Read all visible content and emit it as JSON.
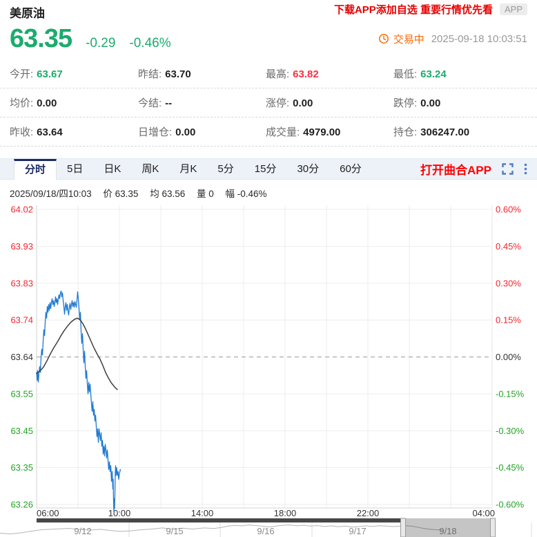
{
  "colors": {
    "up_red": "#fb2f44",
    "down_green": "#1cab6d",
    "axis_red": "#f5232e",
    "axis_green": "#23a325",
    "banner_red": "#e60000",
    "accent_orange": "#ff6600",
    "tab_active": "#1b2a63",
    "icon_blue": "#4e7fc1",
    "price_line": "#1e79d2",
    "avg_line": "#3d3d3d"
  },
  "header": {
    "title": "美原油",
    "promo": "下载APP添加自选 重要行情优先看",
    "app_badge": "APP",
    "price": "63.35",
    "change": "-0.29",
    "change_pct": "-0.46%",
    "status": "交易中",
    "timestamp": "2025-09-18 10:03:51"
  },
  "stats": {
    "rows": [
      [
        {
          "label": "今开:",
          "value": "63.67",
          "color": "green"
        },
        {
          "label": "昨结:",
          "value": "63.70",
          "color": "black"
        },
        {
          "label": "最高:",
          "value": "63.82",
          "color": "red"
        },
        {
          "label": "最低:",
          "value": "63.24",
          "color": "green"
        }
      ],
      [
        {
          "label": "均价:",
          "value": "0.00",
          "color": "black"
        },
        {
          "label": "今结:",
          "value": "--",
          "color": "black"
        },
        {
          "label": "涨停:",
          "value": "0.00",
          "color": "black"
        },
        {
          "label": "跌停:",
          "value": "0.00",
          "color": "black"
        }
      ],
      [
        {
          "label": "昨收:",
          "value": "63.64",
          "color": "black"
        },
        {
          "label": "日增仓:",
          "value": "0.00",
          "color": "black"
        },
        {
          "label": "成交量:",
          "value": "4979.00",
          "color": "black"
        },
        {
          "label": "持仓:",
          "value": "306247.00",
          "color": "black"
        }
      ]
    ]
  },
  "tabs": {
    "items": [
      "分时",
      "5日",
      "日K",
      "周K",
      "月K",
      "5分",
      "15分",
      "30分",
      "60分"
    ],
    "active": 0,
    "app_link": "打开曲合APP"
  },
  "chart_info": [
    "2025/09/18/四10:03",
    "价 63.35",
    "均 63.56",
    "量 0",
    "幅 -0.46%"
  ],
  "chart_data": {
    "type": "line",
    "title": "美原油 分时走势",
    "baseline_price": 63.64,
    "ylim": [
      63.26,
      64.02
    ],
    "y_axis_left": [
      "64.02",
      "63.93",
      "63.83",
      "63.74",
      "63.64",
      "63.55",
      "63.45",
      "63.35",
      "63.26"
    ],
    "y_axis_right": [
      "0.60%",
      "0.45%",
      "0.30%",
      "0.15%",
      "0.00%",
      "-0.15%",
      "-0.30%",
      "-0.45%",
      "-0.60%"
    ],
    "x_total_minutes": 1320,
    "x_ticks": [
      {
        "label": "06:00",
        "t": 0
      },
      {
        "label": "10:00",
        "t": 240
      },
      {
        "label": "14:00",
        "t": 480
      },
      {
        "label": "18:00",
        "t": 720
      },
      {
        "label": "22:00",
        "t": 960
      },
      {
        "label": "04:00",
        "t": 1320
      }
    ],
    "grid_minutes_step": 120,
    "series": [
      {
        "name": "price",
        "color": "#1e79d2",
        "points": [
          [
            0,
            63.6
          ],
          [
            2,
            63.58
          ],
          [
            3,
            63.605
          ],
          [
            5,
            63.575
          ],
          [
            7,
            63.6
          ],
          [
            9,
            63.615
          ],
          [
            11,
            63.6
          ],
          [
            13,
            63.64
          ],
          [
            15,
            63.66
          ],
          [
            17,
            63.645
          ],
          [
            19,
            63.68
          ],
          [
            21,
            63.71
          ],
          [
            23,
            63.695
          ],
          [
            25,
            63.73
          ],
          [
            27,
            63.755
          ],
          [
            29,
            63.74
          ],
          [
            31,
            63.77
          ],
          [
            33,
            63.755
          ],
          [
            35,
            63.775
          ],
          [
            37,
            63.76
          ],
          [
            39,
            63.78
          ],
          [
            41,
            63.765
          ],
          [
            43,
            63.78
          ],
          [
            45,
            63.79
          ],
          [
            47,
            63.775
          ],
          [
            49,
            63.785
          ],
          [
            51,
            63.77
          ],
          [
            53,
            63.78
          ],
          [
            55,
            63.795
          ],
          [
            57,
            63.78
          ],
          [
            59,
            63.79
          ],
          [
            61,
            63.775
          ],
          [
            63,
            63.79
          ],
          [
            65,
            63.8
          ],
          [
            67,
            63.79
          ],
          [
            69,
            63.805
          ],
          [
            71,
            63.81
          ],
          [
            73,
            63.795
          ],
          [
            75,
            63.805
          ],
          [
            77,
            63.785
          ],
          [
            79,
            63.77
          ],
          [
            81,
            63.75
          ],
          [
            83,
            63.77
          ],
          [
            85,
            63.78
          ],
          [
            87,
            63.76
          ],
          [
            89,
            63.775
          ],
          [
            91,
            63.758
          ],
          [
            93,
            63.748
          ],
          [
            95,
            63.768
          ],
          [
            97,
            63.778
          ],
          [
            99,
            63.762
          ],
          [
            101,
            63.775
          ],
          [
            103,
            63.785
          ],
          [
            105,
            63.77
          ],
          [
            107,
            63.78
          ],
          [
            109,
            63.768
          ],
          [
            111,
            63.783
          ],
          [
            113,
            63.775
          ],
          [
            115,
            63.768
          ],
          [
            117,
            63.785
          ],
          [
            119,
            63.808
          ],
          [
            121,
            63.79
          ],
          [
            123,
            63.765
          ],
          [
            125,
            63.735
          ],
          [
            127,
            63.755
          ],
          [
            129,
            63.705
          ],
          [
            131,
            63.675
          ],
          [
            133,
            63.7
          ],
          [
            135,
            63.66
          ],
          [
            137,
            63.625
          ],
          [
            139,
            63.655
          ],
          [
            141,
            63.615
          ],
          [
            143,
            63.585
          ],
          [
            145,
            63.605
          ],
          [
            147,
            63.57
          ],
          [
            149,
            63.545
          ],
          [
            151,
            63.575
          ],
          [
            153,
            63.55
          ],
          [
            155,
            63.57
          ],
          [
            157,
            63.545
          ],
          [
            159,
            63.52
          ],
          [
            161,
            63.5
          ],
          [
            163,
            63.525
          ],
          [
            165,
            63.49
          ],
          [
            167,
            63.505
          ],
          [
            169,
            63.475
          ],
          [
            171,
            63.49
          ],
          [
            173,
            63.46
          ],
          [
            175,
            63.435
          ],
          [
            177,
            63.455
          ],
          [
            179,
            63.42
          ],
          [
            181,
            63.455
          ],
          [
            183,
            63.44
          ],
          [
            185,
            63.425
          ],
          [
            187,
            63.445
          ],
          [
            189,
            63.41
          ],
          [
            191,
            63.425
          ],
          [
            193,
            63.39
          ],
          [
            195,
            63.41
          ],
          [
            197,
            63.385
          ],
          [
            199,
            63.415
          ],
          [
            201,
            63.4
          ],
          [
            203,
            63.38
          ],
          [
            205,
            63.4
          ],
          [
            207,
            63.375
          ],
          [
            209,
            63.35
          ],
          [
            211,
            63.37
          ],
          [
            213,
            63.345
          ],
          [
            215,
            63.36
          ],
          [
            217,
            63.32
          ],
          [
            219,
            63.345
          ],
          [
            221,
            63.3
          ],
          [
            222,
            63.325
          ],
          [
            223,
            63.27
          ],
          [
            224,
            63.24
          ],
          [
            225,
            63.275
          ],
          [
            226,
            63.25
          ],
          [
            227,
            63.29
          ],
          [
            228,
            63.34
          ],
          [
            229,
            63.36
          ],
          [
            230,
            63.335
          ],
          [
            232,
            63.355
          ],
          [
            234,
            63.335
          ],
          [
            236,
            63.345
          ],
          [
            238,
            63.325
          ],
          [
            240,
            63.34
          ],
          [
            243,
            63.35
          ]
        ]
      },
      {
        "name": "average",
        "color": "#3d3d3d",
        "points": [
          [
            0,
            63.598
          ],
          [
            10,
            63.604
          ],
          [
            20,
            63.614
          ],
          [
            30,
            63.63
          ],
          [
            40,
            63.648
          ],
          [
            50,
            63.664
          ],
          [
            60,
            63.678
          ],
          [
            70,
            63.694
          ],
          [
            80,
            63.708
          ],
          [
            90,
            63.72
          ],
          [
            100,
            63.73
          ],
          [
            110,
            63.737
          ],
          [
            118,
            63.74
          ],
          [
            126,
            63.736
          ],
          [
            134,
            63.726
          ],
          [
            142,
            63.712
          ],
          [
            150,
            63.696
          ],
          [
            158,
            63.68
          ],
          [
            166,
            63.664
          ],
          [
            174,
            63.65
          ],
          [
            184,
            63.634
          ],
          [
            192,
            63.618
          ],
          [
            200,
            63.6
          ],
          [
            208,
            63.586
          ],
          [
            216,
            63.574
          ],
          [
            224,
            63.565
          ],
          [
            230,
            63.559
          ],
          [
            234,
            63.556
          ]
        ]
      }
    ],
    "navigator": {
      "dates": [
        "9/12",
        "9/15",
        "9/16",
        "9/17",
        "9/18"
      ],
      "date_centers": [
        120,
        253,
        385,
        518,
        649
      ],
      "dividers": [
        187,
        319,
        452
      ],
      "selected_date": "9/18",
      "selection_range": [
        584,
        714
      ],
      "mini_points": [
        [
          0,
          0.78
        ],
        [
          15,
          0.84
        ],
        [
          30,
          0.76
        ],
        [
          45,
          0.65
        ],
        [
          60,
          0.55
        ],
        [
          80,
          0.5
        ],
        [
          100,
          0.45
        ],
        [
          115,
          0.52
        ],
        [
          130,
          0.58
        ],
        [
          145,
          0.52
        ],
        [
          160,
          0.6
        ],
        [
          175,
          0.66
        ],
        [
          190,
          0.62
        ],
        [
          205,
          0.55
        ],
        [
          220,
          0.5
        ],
        [
          235,
          0.42
        ],
        [
          250,
          0.5
        ],
        [
          265,
          0.44
        ],
        [
          280,
          0.5
        ],
        [
          295,
          0.42
        ],
        [
          310,
          0.46
        ],
        [
          320,
          0.4
        ],
        [
          330,
          0.3
        ],
        [
          340,
          0.25
        ],
        [
          350,
          0.28
        ],
        [
          360,
          0.22
        ],
        [
          370,
          0.26
        ],
        [
          380,
          0.3
        ],
        [
          390,
          0.35
        ],
        [
          400,
          0.3
        ],
        [
          410,
          0.24
        ],
        [
          420,
          0.22
        ],
        [
          430,
          0.28
        ],
        [
          440,
          0.24
        ],
        [
          450,
          0.3
        ],
        [
          460,
          0.26
        ],
        [
          470,
          0.32
        ],
        [
          480,
          0.28
        ],
        [
          490,
          0.34
        ],
        [
          500,
          0.3
        ],
        [
          510,
          0.36
        ],
        [
          520,
          0.33
        ],
        [
          530,
          0.28
        ],
        [
          540,
          0.32
        ],
        [
          550,
          0.27
        ],
        [
          560,
          0.3
        ],
        [
          570,
          0.33
        ],
        [
          580,
          0.3
        ]
      ],
      "mini_selected_points": [
        [
          588,
          0.27
        ],
        [
          596,
          0.3
        ],
        [
          604,
          0.36
        ],
        [
          612,
          0.44
        ],
        [
          620,
          0.5
        ],
        [
          630,
          0.54
        ],
        [
          642,
          0.57
        ]
      ]
    }
  }
}
